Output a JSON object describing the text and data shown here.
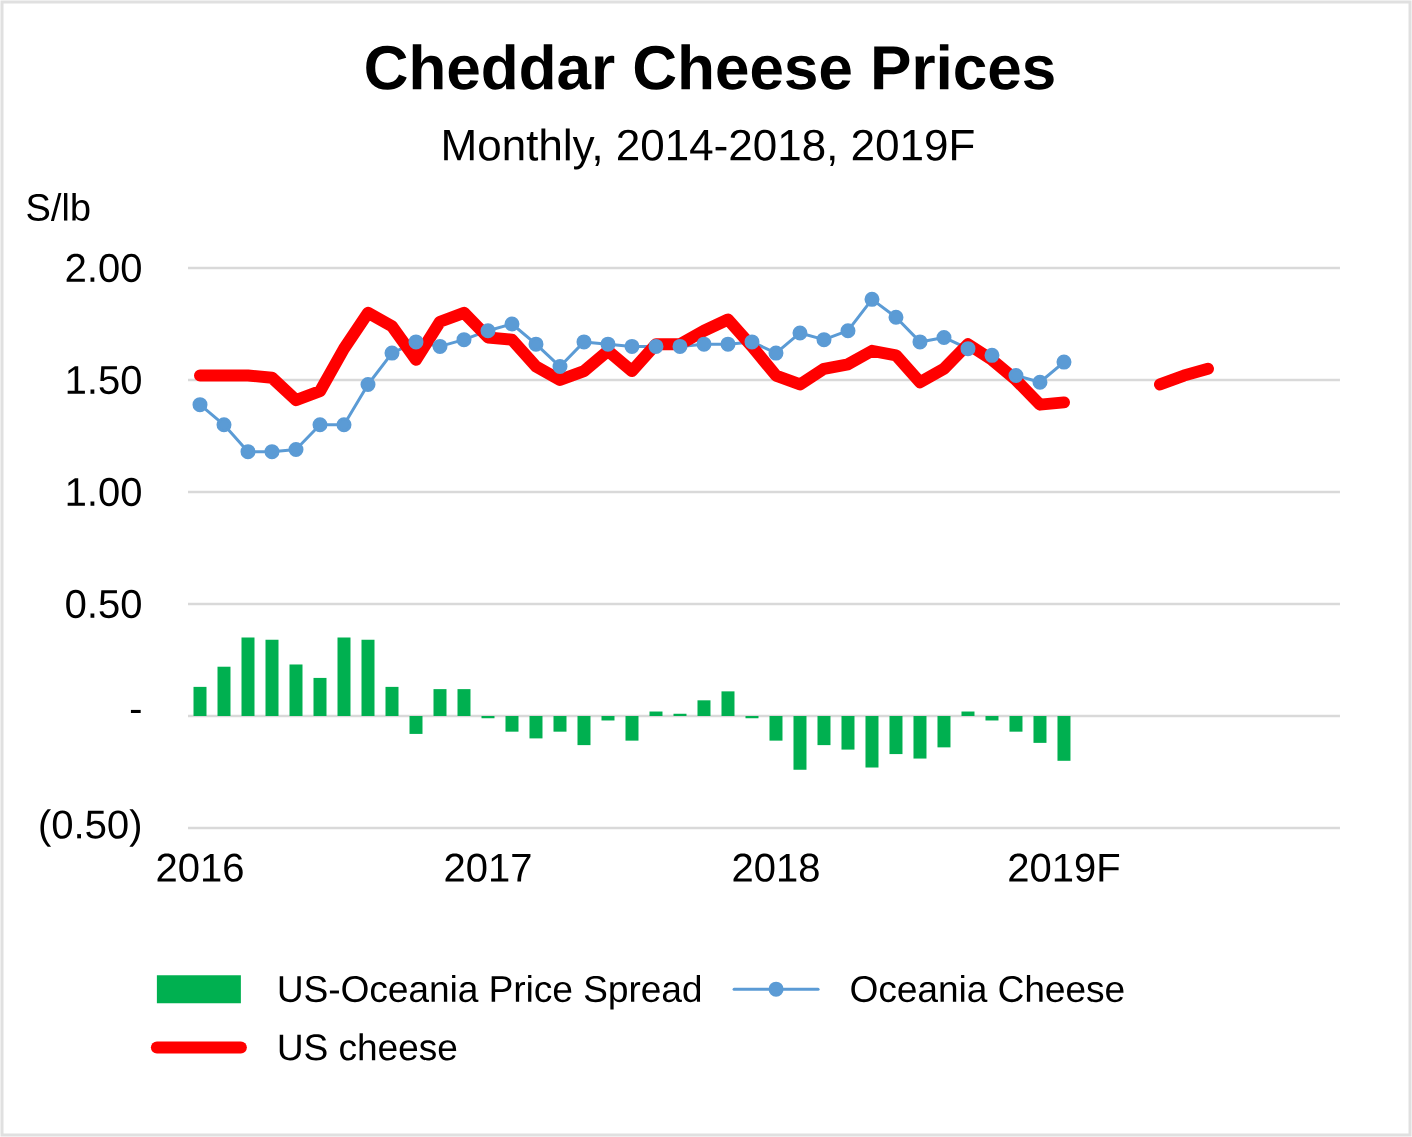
{
  "chart_data": {
    "type": "bar",
    "title": "Cheddar Cheese Prices",
    "subtitle": "Monthly, 2014-2018,  2019F",
    "ylabel": "S/lb",
    "categories": [
      "2016",
      null,
      null,
      null,
      null,
      null,
      null,
      null,
      null,
      null,
      null,
      null,
      "2017",
      null,
      null,
      null,
      null,
      null,
      null,
      null,
      null,
      null,
      null,
      null,
      "2018",
      null,
      null,
      null,
      null,
      null,
      null,
      null,
      null,
      null,
      null,
      null,
      "2019F",
      null,
      null,
      null,
      null,
      null,
      null,
      null,
      null,
      null,
      null,
      null
    ],
    "series": [
      {
        "name": "US-Oceania Price Spread",
        "color": "#00b050",
        "values": [
          0.13,
          0.22,
          0.35,
          0.34,
          0.23,
          0.17,
          0.35,
          0.34,
          0.13,
          -0.08,
          0.12,
          0.12,
          -0.01,
          -0.07,
          -0.1,
          -0.07,
          -0.13,
          -0.02,
          -0.11,
          0.02,
          0.01,
          0.07,
          0.11,
          -0.01,
          -0.11,
          -0.24,
          -0.13,
          -0.15,
          -0.23,
          -0.17,
          -0.19,
          -0.14,
          0.02,
          -0.02,
          -0.07,
          -0.12,
          -0.2,
          null,
          null,
          null,
          null,
          null,
          null,
          null,
          null,
          null,
          null,
          null
        ]
      },
      {
        "name": "Oceania Cheese",
        "type": "line",
        "marker": "circle",
        "color": "#5b9bd5",
        "values": [
          1.39,
          1.3,
          1.18,
          1.18,
          1.19,
          1.3,
          1.3,
          1.48,
          1.62,
          1.67,
          1.65,
          1.68,
          1.72,
          1.75,
          1.66,
          1.56,
          1.67,
          1.66,
          1.65,
          1.65,
          1.65,
          1.66,
          1.66,
          1.67,
          1.62,
          1.71,
          1.68,
          1.72,
          1.86,
          1.78,
          1.67,
          1.69,
          1.64,
          1.61,
          1.52,
          1.49,
          1.58,
          null,
          null,
          null,
          null,
          null,
          null,
          null,
          null,
          null,
          null,
          null
        ]
      },
      {
        "name": "US cheese",
        "type": "line",
        "color": "#ff0000",
        "values": [
          1.52,
          1.52,
          1.52,
          1.51,
          1.41,
          1.45,
          1.64,
          1.8,
          1.74,
          1.59,
          1.76,
          1.8,
          1.69,
          1.68,
          1.56,
          1.5,
          1.54,
          1.63,
          1.54,
          1.66,
          1.66,
          1.72,
          1.77,
          1.65,
          1.52,
          1.48,
          1.55,
          1.57,
          1.63,
          1.61,
          1.49,
          1.55,
          1.66,
          1.59,
          1.5,
          1.39,
          1.4,
          null,
          null,
          null,
          1.48,
          1.52,
          1.55,
          null,
          null,
          null,
          null,
          null
        ]
      }
    ],
    "ylim": [
      -0.5,
      2.0
    ],
    "yticks": [
      {
        "value": -0.5,
        "label": "(0.50)"
      },
      {
        "value": 0,
        "label": "-"
      },
      {
        "value": 0.5,
        "label": "0.50"
      },
      {
        "value": 1.0,
        "label": "1.00"
      },
      {
        "value": 1.5,
        "label": "1.50"
      },
      {
        "value": 2.0,
        "label": "2.00"
      }
    ],
    "grid": "y",
    "legend": "bottom"
  }
}
